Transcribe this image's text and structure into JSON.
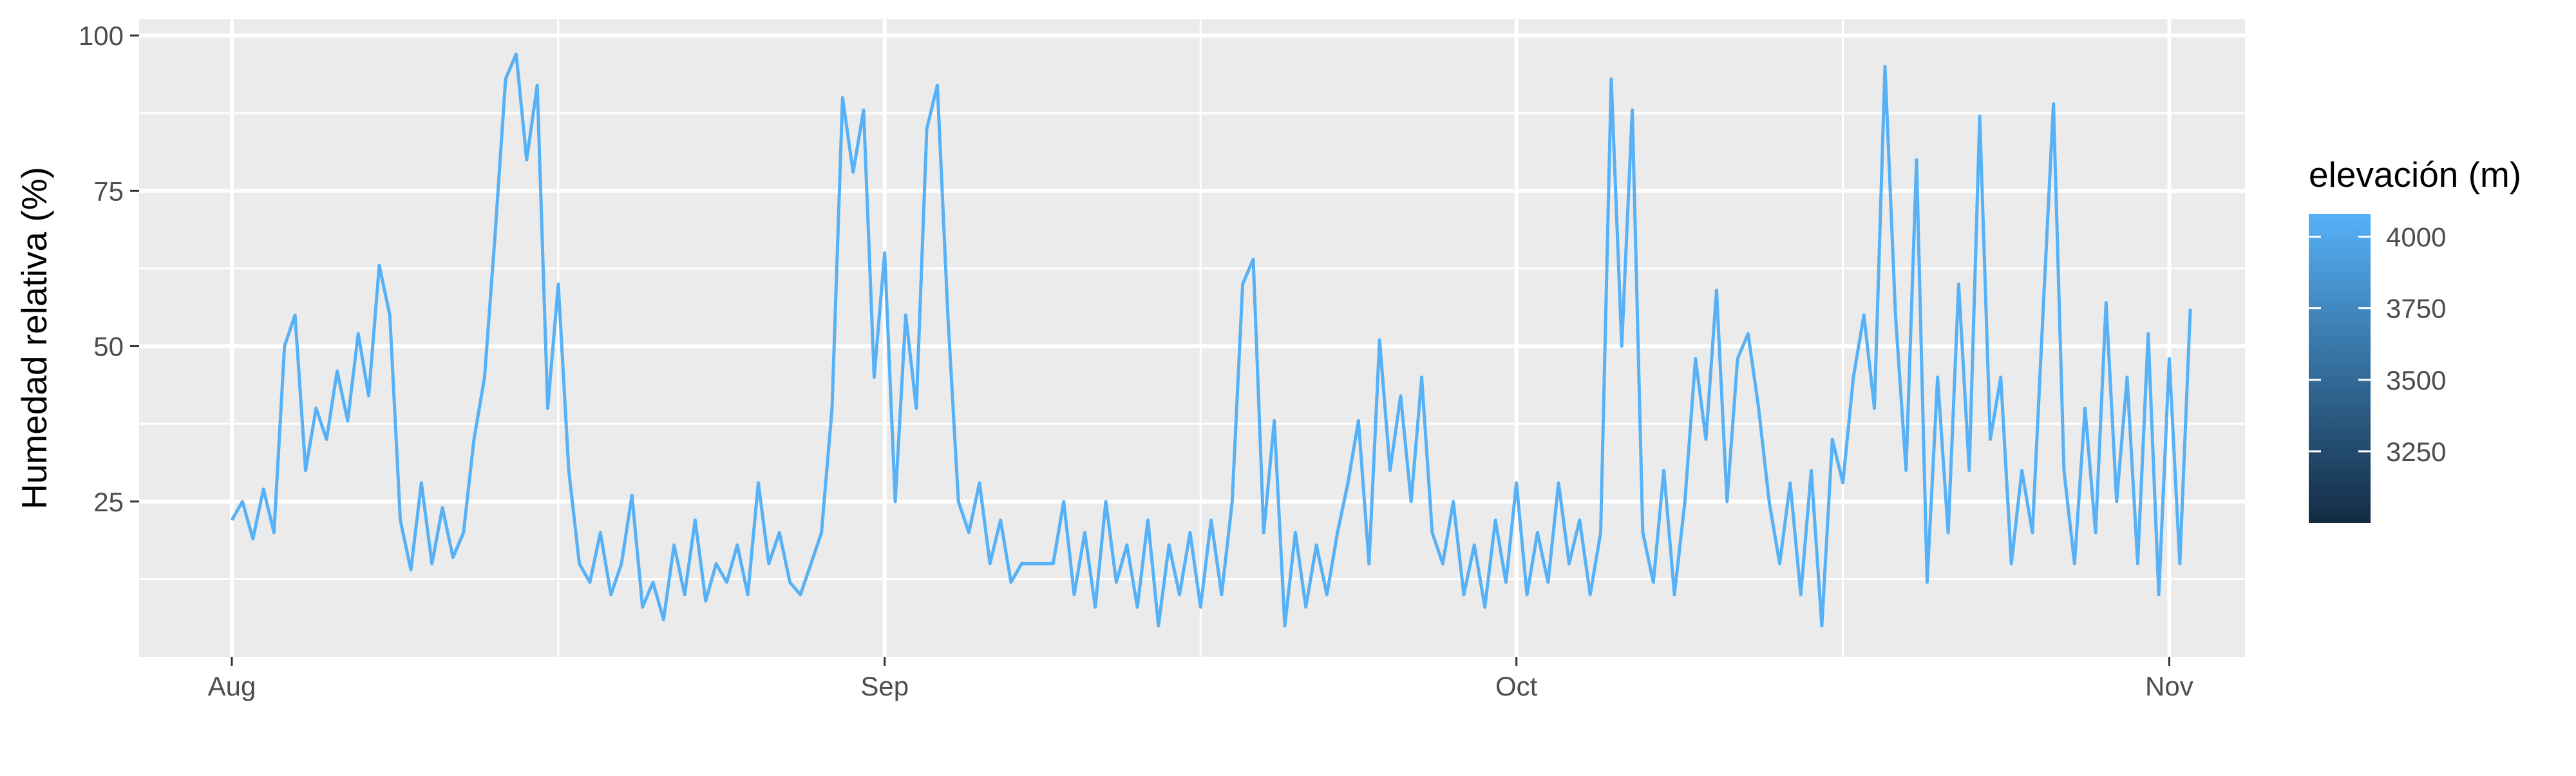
{
  "chart_data": {
    "type": "line",
    "title": "",
    "xlabel": "",
    "ylabel": "Humedad relativa (%)",
    "x_ticks": [
      "Aug",
      "Sep",
      "Oct",
      "Nov"
    ],
    "x_range": [
      "2023-07-30",
      "2023-11-02"
    ],
    "y_ticks": [
      25,
      50,
      75,
      100
    ],
    "ylim": [
      0,
      100
    ],
    "grid": true,
    "legend": {
      "title": "elevación (m)",
      "position": "right",
      "type": "colorbar",
      "labels": [
        4000,
        3750,
        3500,
        3250
      ],
      "range": [
        3000,
        4080
      ],
      "color_low": "#132b43",
      "color_high": "#56b1f7"
    },
    "series": [
      {
        "color": "#56b1f7",
        "elevation": 4080,
        "points": [
          [
            "2023-08-01",
            22
          ],
          [
            "2023-08-01.5",
            25
          ],
          [
            "2023-08-02",
            19
          ],
          [
            "2023-08-02.5",
            27
          ],
          [
            "2023-08-03",
            20
          ],
          [
            "2023-08-03.5",
            50
          ],
          [
            "2023-08-04",
            55
          ],
          [
            "2023-08-04.5",
            30
          ],
          [
            "2023-08-05",
            40
          ],
          [
            "2023-08-05.5",
            35
          ],
          [
            "2023-08-06",
            46
          ],
          [
            "2023-08-06.5",
            38
          ],
          [
            "2023-08-07",
            52
          ],
          [
            "2023-08-07.5",
            42
          ],
          [
            "2023-08-08",
            63
          ],
          [
            "2023-08-08.5",
            55
          ],
          [
            "2023-08-09",
            22
          ],
          [
            "2023-08-09.5",
            14
          ],
          [
            "2023-08-10",
            28
          ],
          [
            "2023-08-10.5",
            15
          ],
          [
            "2023-08-11",
            24
          ],
          [
            "2023-08-11.5",
            16
          ],
          [
            "2023-08-12",
            20
          ],
          [
            "2023-08-12.5",
            35
          ],
          [
            "2023-08-13",
            45
          ],
          [
            "2023-08-13.5",
            68
          ],
          [
            "2023-08-14",
            93
          ],
          [
            "2023-08-14.5",
            97
          ],
          [
            "2023-08-15",
            80
          ],
          [
            "2023-08-15.5",
            92
          ],
          [
            "2023-08-16",
            40
          ],
          [
            "2023-08-16.5",
            60
          ],
          [
            "2023-08-17",
            30
          ],
          [
            "2023-08-17.5",
            15
          ],
          [
            "2023-08-18",
            12
          ],
          [
            "2023-08-18.5",
            20
          ],
          [
            "2023-08-19",
            10
          ],
          [
            "2023-08-19.5",
            15
          ],
          [
            "2023-08-20",
            26
          ],
          [
            "2023-08-20.5",
            8
          ],
          [
            "2023-08-21",
            12
          ],
          [
            "2023-08-21.5",
            6
          ],
          [
            "2023-08-22",
            18
          ],
          [
            "2023-08-22.5",
            10
          ],
          [
            "2023-08-23",
            22
          ],
          [
            "2023-08-23.5",
            9
          ],
          [
            "2023-08-24",
            15
          ],
          [
            "2023-08-24.5",
            12
          ],
          [
            "2023-08-25",
            18
          ],
          [
            "2023-08-25.5",
            10
          ],
          [
            "2023-08-26",
            28
          ],
          [
            "2023-08-26.5",
            15
          ],
          [
            "2023-08-27",
            20
          ],
          [
            "2023-08-27.5",
            12
          ],
          [
            "2023-08-28",
            10
          ],
          [
            "2023-08-28.5",
            15
          ],
          [
            "2023-08-29",
            20
          ],
          [
            "2023-08-29.5",
            40
          ],
          [
            "2023-08-30",
            90
          ],
          [
            "2023-08-30.5",
            78
          ],
          [
            "2023-08-31",
            88
          ],
          [
            "2023-08-31.5",
            45
          ],
          [
            "2023-09-01",
            65
          ],
          [
            "2023-09-01.5",
            25
          ],
          [
            "2023-09-02",
            55
          ],
          [
            "2023-09-02.5",
            40
          ],
          [
            "2023-09-03",
            85
          ],
          [
            "2023-09-03.5",
            92
          ],
          [
            "2023-09-04",
            55
          ],
          [
            "2023-09-04.5",
            25
          ],
          [
            "2023-09-05",
            20
          ],
          [
            "2023-09-05.5",
            28
          ],
          [
            "2023-09-06",
            15
          ],
          [
            "2023-09-06.5",
            22
          ],
          [
            "2023-09-07",
            12
          ],
          [
            "2023-09-07.5",
            15
          ],
          [
            "2023-09-08",
            15
          ],
          [
            "2023-09-09",
            15
          ],
          [
            "2023-09-09.5",
            25
          ],
          [
            "2023-09-10",
            10
          ],
          [
            "2023-09-10.5",
            20
          ],
          [
            "2023-09-11",
            8
          ],
          [
            "2023-09-11.5",
            25
          ],
          [
            "2023-09-12",
            12
          ],
          [
            "2023-09-12.5",
            18
          ],
          [
            "2023-09-13",
            8
          ],
          [
            "2023-09-13.5",
            22
          ],
          [
            "2023-09-14",
            5
          ],
          [
            "2023-09-14.5",
            18
          ],
          [
            "2023-09-15",
            10
          ],
          [
            "2023-09-15.5",
            20
          ],
          [
            "2023-09-16",
            8
          ],
          [
            "2023-09-16.5",
            22
          ],
          [
            "2023-09-17",
            10
          ],
          [
            "2023-09-17.5",
            25
          ],
          [
            "2023-09-18",
            60
          ],
          [
            "2023-09-18.5",
            64
          ],
          [
            "2023-09-19",
            20
          ],
          [
            "2023-09-19.5",
            38
          ],
          [
            "2023-09-20",
            5
          ],
          [
            "2023-09-20.5",
            20
          ],
          [
            "2023-09-21",
            8
          ],
          [
            "2023-09-21.5",
            18
          ],
          [
            "2023-09-22",
            10
          ],
          [
            "2023-09-22.5",
            20
          ],
          [
            "2023-09-23",
            28
          ],
          [
            "2023-09-23.5",
            38
          ],
          [
            "2023-09-24",
            15
          ],
          [
            "2023-09-24.5",
            51
          ],
          [
            "2023-09-25",
            30
          ],
          [
            "2023-09-25.5",
            42
          ],
          [
            "2023-09-26",
            25
          ],
          [
            "2023-09-26.5",
            45
          ],
          [
            "2023-09-27",
            20
          ],
          [
            "2023-09-27.5",
            15
          ],
          [
            "2023-09-28",
            25
          ],
          [
            "2023-09-28.5",
            10
          ],
          [
            "2023-09-29",
            18
          ],
          [
            "2023-09-29.5",
            8
          ],
          [
            "2023-09-30",
            22
          ],
          [
            "2023-09-30.5",
            12
          ],
          [
            "2023-10-01",
            28
          ],
          [
            "2023-10-01.5",
            10
          ],
          [
            "2023-10-02",
            20
          ],
          [
            "2023-10-02.5",
            12
          ],
          [
            "2023-10-03",
            28
          ],
          [
            "2023-10-03.5",
            15
          ],
          [
            "2023-10-04",
            22
          ],
          [
            "2023-10-04.5",
            10
          ],
          [
            "2023-10-05",
            20
          ],
          [
            "2023-10-05.5",
            93
          ],
          [
            "2023-10-06",
            50
          ],
          [
            "2023-10-06.5",
            88
          ],
          [
            "2023-10-07",
            20
          ],
          [
            "2023-10-07.5",
            12
          ],
          [
            "2023-10-08",
            30
          ],
          [
            "2023-10-08.5",
            10
          ],
          [
            "2023-10-09",
            25
          ],
          [
            "2023-10-09.5",
            48
          ],
          [
            "2023-10-10",
            35
          ],
          [
            "2023-10-10.5",
            59
          ],
          [
            "2023-10-11",
            25
          ],
          [
            "2023-10-11.5",
            48
          ],
          [
            "2023-10-12",
            52
          ],
          [
            "2023-10-12.5",
            40
          ],
          [
            "2023-10-13",
            25
          ],
          [
            "2023-10-13.5",
            15
          ],
          [
            "2023-10-14",
            28
          ],
          [
            "2023-10-14.5",
            10
          ],
          [
            "2023-10-15",
            30
          ],
          [
            "2023-10-15.5",
            5
          ],
          [
            "2023-10-16",
            35
          ],
          [
            "2023-10-16.5",
            28
          ],
          [
            "2023-10-17",
            45
          ],
          [
            "2023-10-17.5",
            55
          ],
          [
            "2023-10-18",
            40
          ],
          [
            "2023-10-18.5",
            95
          ],
          [
            "2023-10-19",
            55
          ],
          [
            "2023-10-19.5",
            30
          ],
          [
            "2023-10-20",
            80
          ],
          [
            "2023-10-20.5",
            12
          ],
          [
            "2023-10-21",
            45
          ],
          [
            "2023-10-21.5",
            20
          ],
          [
            "2023-10-22",
            60
          ],
          [
            "2023-10-22.5",
            30
          ],
          [
            "2023-10-23",
            87
          ],
          [
            "2023-10-23.5",
            35
          ],
          [
            "2023-10-24",
            45
          ],
          [
            "2023-10-24.5",
            15
          ],
          [
            "2023-10-25",
            30
          ],
          [
            "2023-10-25.5",
            20
          ],
          [
            "2023-10-26",
            55
          ],
          [
            "2023-10-26.5",
            89
          ],
          [
            "2023-10-27",
            30
          ],
          [
            "2023-10-27.5",
            15
          ],
          [
            "2023-10-28",
            40
          ],
          [
            "2023-10-28.5",
            20
          ],
          [
            "2023-10-29",
            57
          ],
          [
            "2023-10-29.5",
            25
          ],
          [
            "2023-10-30",
            45
          ],
          [
            "2023-10-30.5",
            15
          ],
          [
            "2023-10-31",
            52
          ],
          [
            "2023-10-31.5",
            10
          ],
          [
            "2023-11-01",
            48
          ],
          [
            "2023-11-01.5",
            15
          ],
          [
            "2023-11-02",
            56
          ]
        ]
      }
    ]
  }
}
